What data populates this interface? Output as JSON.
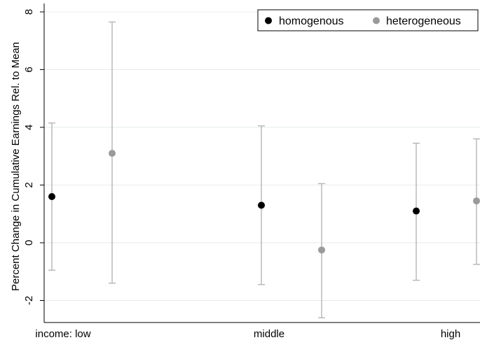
{
  "chart_data": {
    "type": "scatter",
    "ylabel": "Percent Change in Cumulative Earnings Rel. to Mean",
    "xlabel": "",
    "ylim": [
      -2.75,
      8.2
    ],
    "y_ticks": [
      -2,
      0,
      2,
      4,
      6,
      8
    ],
    "y_tick_labels": [
      "-2",
      "0",
      "2",
      "4",
      "6",
      "8"
    ],
    "categories": [
      "low",
      "middle",
      "high"
    ],
    "category_labels": [
      "income:  low",
      "middle",
      "high"
    ],
    "grid": true,
    "legend_position": "top-right",
    "series": [
      {
        "name": "homogenous",
        "color": "#000000",
        "ci_color": "#b5b5b5",
        "values": [
          1.6,
          1.3,
          1.1
        ],
        "lower": [
          -0.95,
          -1.45,
          -1.3
        ],
        "upper": [
          4.15,
          4.05,
          3.45
        ]
      },
      {
        "name": "heterogeneous",
        "color": "#9a9a9a",
        "ci_color": "#b5b5b5",
        "values": [
          3.1,
          -0.25,
          1.45
        ],
        "lower": [
          -1.4,
          -2.6,
          -0.75
        ],
        "upper": [
          7.65,
          2.05,
          3.6
        ]
      }
    ]
  }
}
